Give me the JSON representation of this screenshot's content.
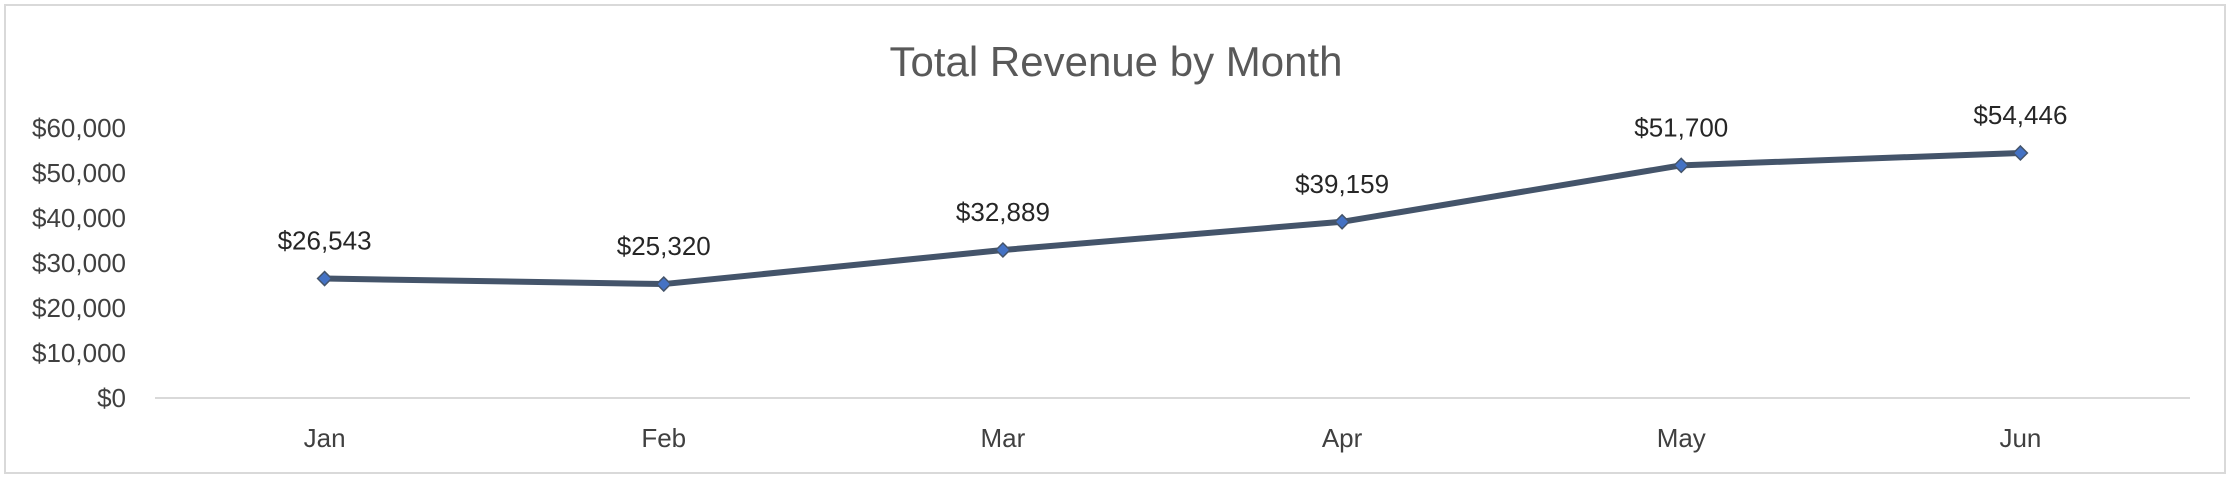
{
  "chart_data": {
    "type": "line",
    "title": "Total Revenue by Month",
    "xlabel": "",
    "ylabel": "",
    "categories": [
      "Jan",
      "Feb",
      "Mar",
      "Apr",
      "May",
      "Jun"
    ],
    "series": [
      {
        "values": [
          26543,
          25320,
          32889,
          39159,
          51700,
          54446
        ],
        "data_labels": [
          "$26,543",
          "$25,320",
          "$32,889",
          "$39,159",
          "$51,700",
          "$54,446"
        ],
        "color": "#44546a",
        "marker_color": "#4472c4",
        "marker": "diamond"
      }
    ],
    "y_ticks": [
      0,
      10000,
      20000,
      30000,
      40000,
      50000,
      60000
    ],
    "y_tick_labels": [
      "$0",
      "$10,000",
      "$20,000",
      "$30,000",
      "$40,000",
      "$50,000",
      "$60,000"
    ],
    "ylim": [
      0,
      60000
    ],
    "grid": false,
    "legend": "none",
    "axis_color": "#d9d9d9"
  }
}
